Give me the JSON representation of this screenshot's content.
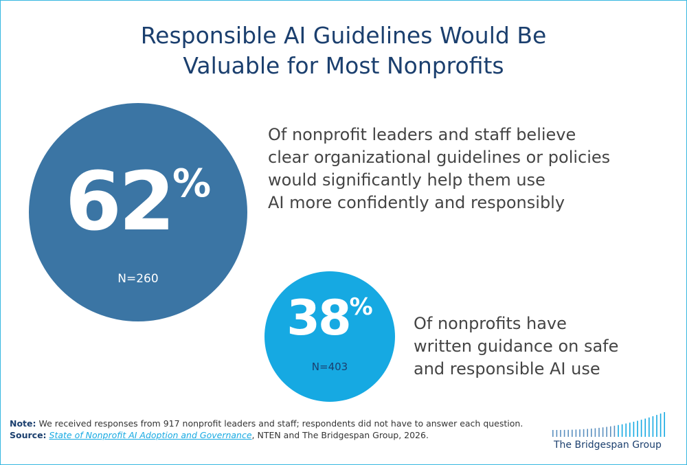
{
  "title": {
    "line1": "Responsible AI Guidelines Would Be",
    "line2": "Valuable for Most Nonprofits"
  },
  "stats": [
    {
      "value": "62",
      "unit": "%",
      "n": "N=260",
      "description": [
        "Of nonprofit leaders and staff believe",
        "clear organizational guidelines or policies",
        "would significantly help them use",
        "AI more confidently and responsibly"
      ]
    },
    {
      "value": "38",
      "unit": "%",
      "n": "N=403",
      "description": [
        "Of nonprofits have",
        "written guidance on safe",
        "and responsible AI use"
      ]
    }
  ],
  "note": {
    "label": "Note:",
    "text": "We received responses from 917 nonprofit leaders and staff; respondents did not have to answer each question."
  },
  "source": {
    "label": "Source:",
    "title": "State of Nonprofit AI Adoption and Governance",
    "rest": ", NTEN and The Bridgespan Group, 2026."
  },
  "logo": {
    "text": "The Bridgespan Group"
  },
  "colors": {
    "title": "#1b3f6e",
    "big_circle": "#3b75a4",
    "small_circle": "#16a9e2",
    "body_text": "#444444",
    "frame": "#35b6e0"
  }
}
